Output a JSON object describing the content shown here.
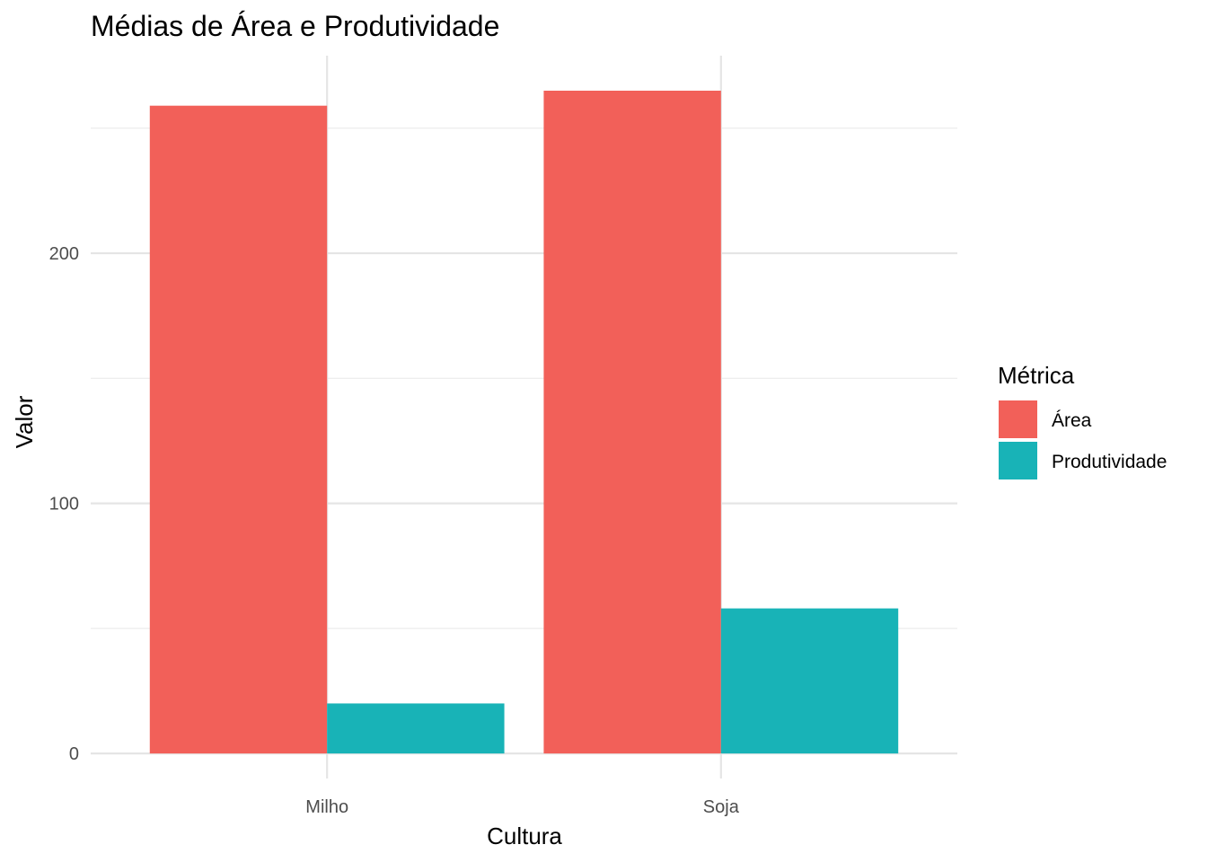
{
  "chart_data": {
    "type": "bar",
    "title": "Médias de Área e Produtividade",
    "xlabel": "Cultura",
    "ylabel": "Valor",
    "categories": [
      "Milho",
      "Soja"
    ],
    "series": [
      {
        "name": "Área",
        "values": [
          259,
          265
        ],
        "color": "#F26059"
      },
      {
        "name": "Produtividade",
        "values": [
          20,
          58
        ],
        "color": "#18B3B7"
      }
    ],
    "ylim": [
      -10,
      279
    ],
    "yticks": [
      0,
      100,
      200
    ],
    "y_minor_ticks": [
      50,
      150,
      250
    ],
    "legend": {
      "title": "Métrica",
      "position": "right"
    },
    "grid": true
  }
}
